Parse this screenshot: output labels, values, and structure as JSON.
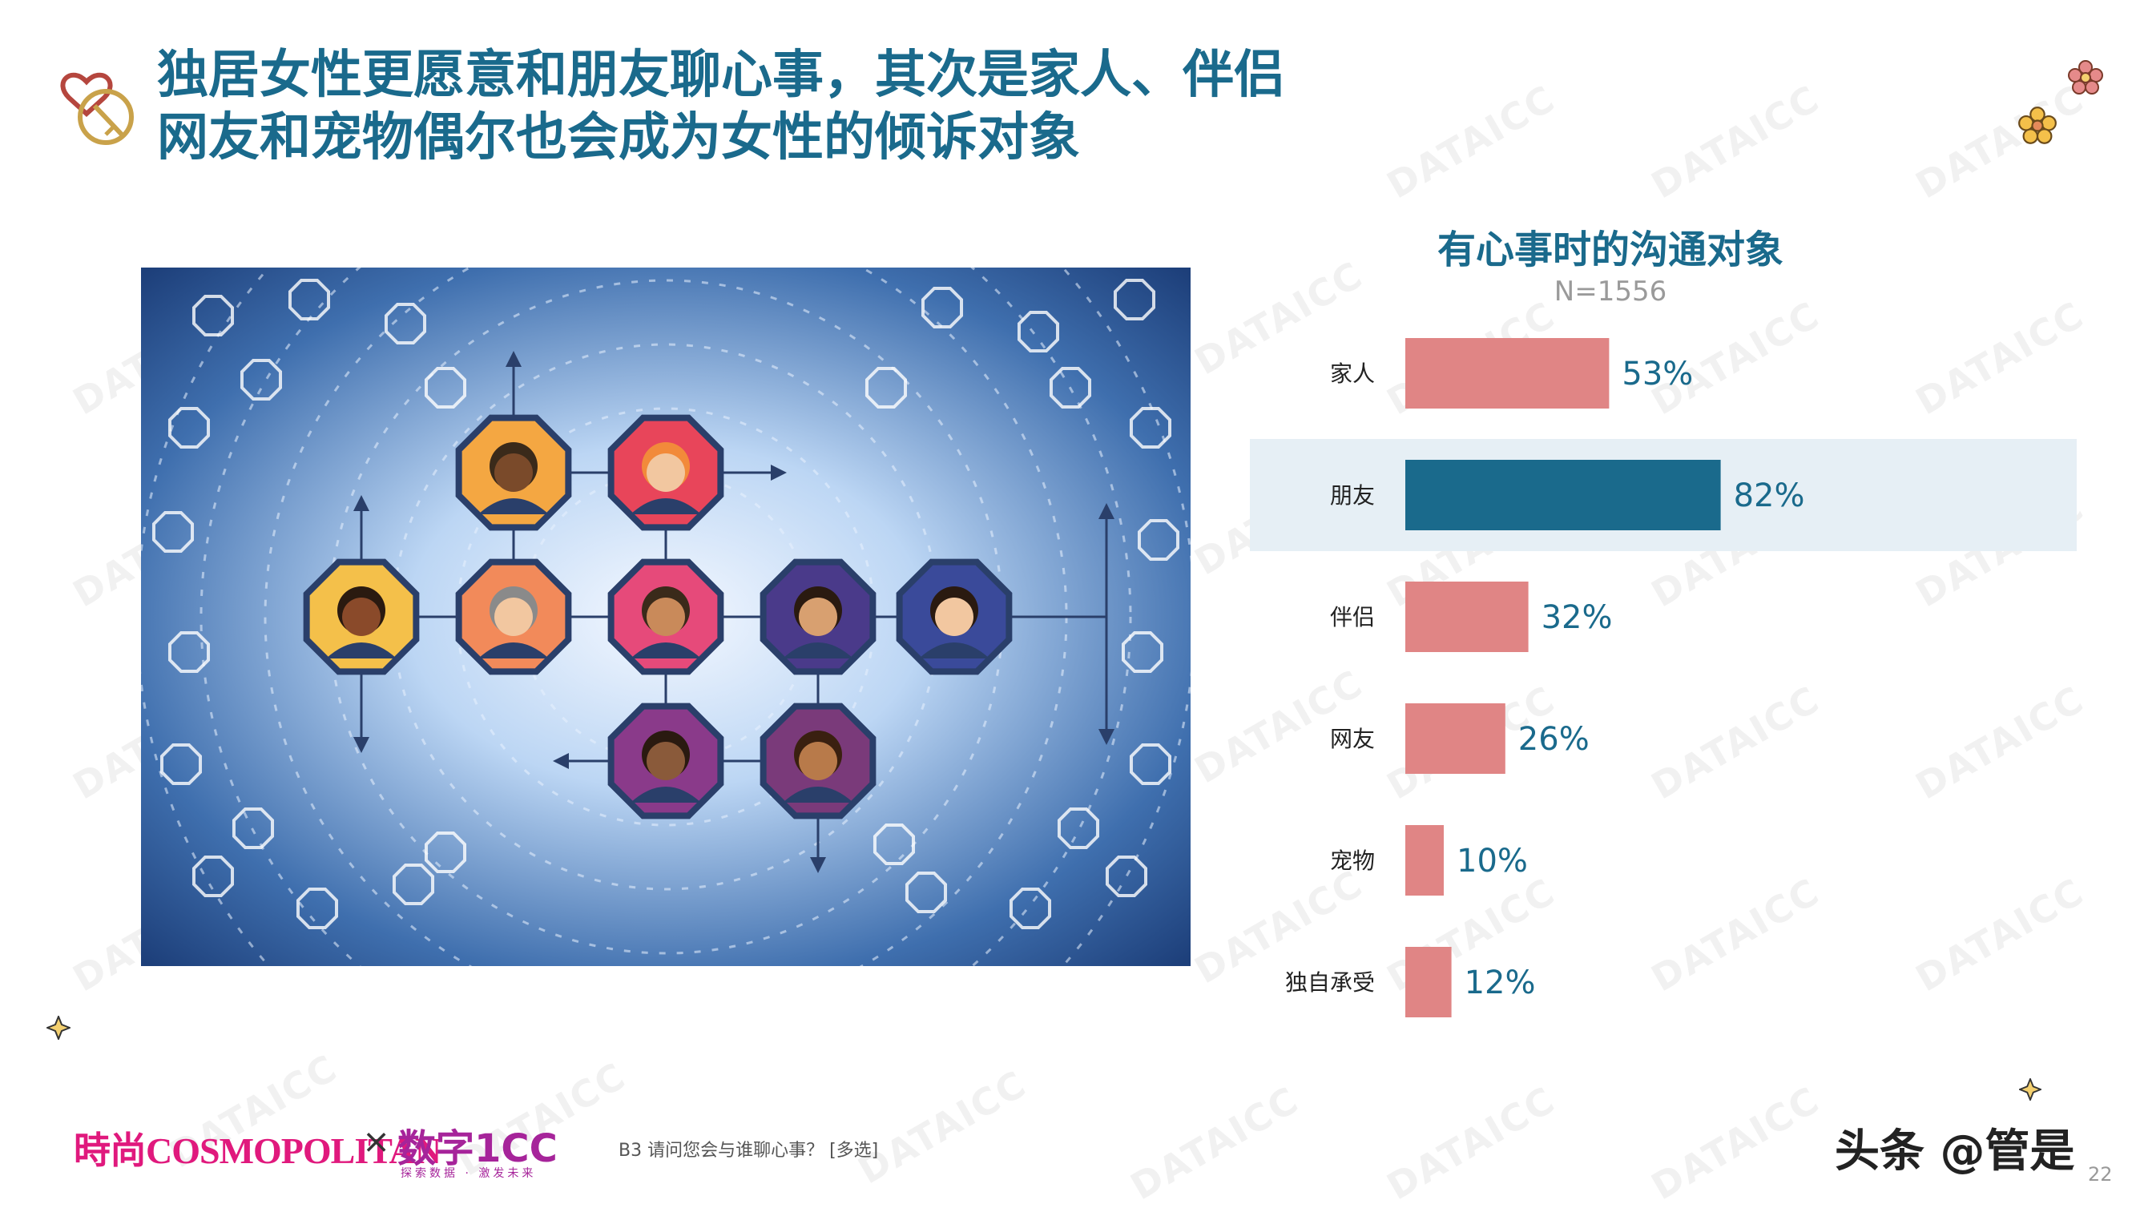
{
  "header": {
    "title_line1": "独居女性更愿意和朋友聊心事，其次是家人、伴侣",
    "title_line2": "网友和宠物偶尔也会成为女性的倾诉对象"
  },
  "chart_data": {
    "type": "bar",
    "orientation": "horizontal",
    "title": "有心事时的沟通对象",
    "subtitle": "N=1556",
    "categories": [
      "家人",
      "朋友",
      "伴侣",
      "网友",
      "宠物",
      "独自承受"
    ],
    "values": [
      53,
      82,
      32,
      26,
      10,
      12
    ],
    "value_labels": [
      "53%",
      "82%",
      "32%",
      "26%",
      "10%",
      "12%"
    ],
    "unit": "%",
    "highlight": "朋友",
    "colors": {
      "bar": "#e08585",
      "highlight_bar": "#1a6a8c",
      "highlight_band": "#e6eff5",
      "label": "#1a6a8c"
    },
    "grid": false,
    "legend": "none"
  },
  "footer": {
    "question": "B3  请问您会与谁聊心事？ [多选]",
    "logo_left": "時尚COSMOPOLITAN",
    "logo_times": "×",
    "logo_right": "数字1CC",
    "logo_right_sub": "探索数据 · 激发未来",
    "credit": "头条 @管是",
    "page": "22"
  },
  "watermark": "DATAICC",
  "icons": [
    "heart-key-icon",
    "flower-icon",
    "sparkle-icon",
    "network-people-illustration"
  ]
}
